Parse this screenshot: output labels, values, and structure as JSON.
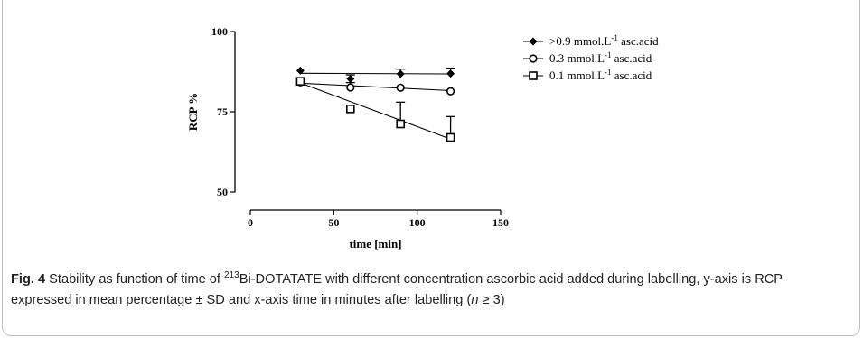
{
  "chart_data": {
    "type": "scatter",
    "xlabel": "time [min]",
    "ylabel": "RCP %",
    "xlim": [
      0,
      150
    ],
    "ylim": [
      50,
      100
    ],
    "x_ticks": [
      0,
      50,
      100,
      150
    ],
    "y_ticks": [
      50,
      75,
      100
    ],
    "grid": false,
    "legend_position": "top-right",
    "x": [
      30,
      60,
      90,
      120
    ],
    "series": [
      {
        "name_prefix": ">0.9 mmol.L",
        "name_sup": "-1",
        "name_suffix": " asc.acid",
        "marker": "diamond",
        "values": [
          87.8,
          85.3,
          86.8,
          86.9
        ],
        "sd": [
          0,
          1.2,
          1.5,
          1.7
        ],
        "fit": [
          87.0,
          86.8
        ]
      },
      {
        "name_prefix": "0.3 mmol.L",
        "name_sup": "-1",
        "name_suffix": " asc.acid",
        "marker": "circle",
        "values": [
          84.2,
          82.6,
          82.5,
          81.4
        ],
        "sd": [
          0,
          1.5,
          0,
          0
        ],
        "fit": [
          83.9,
          81.6
        ]
      },
      {
        "name_prefix": "0.1 mmol.L",
        "name_sup": "-1",
        "name_suffix": " asc.acid",
        "marker": "square",
        "values": [
          84.5,
          75.9,
          71.2,
          67.0
        ],
        "sd": [
          0,
          0,
          6.8,
          6.5
        ],
        "fit": [
          84.0,
          66.5
        ]
      }
    ]
  },
  "caption": {
    "fig_label": "Fig. 4",
    "text_before_sup": " Stability as function of time of ",
    "sup": "213",
    "text_after_sup": "Bi-DOTATATE with different concentration ascorbic acid added during labelling, y-axis is RCP expressed in mean percentage ± SD and x-axis time in minutes after labelling (",
    "n_italic": "n",
    "text_end": " ≥ 3)"
  }
}
